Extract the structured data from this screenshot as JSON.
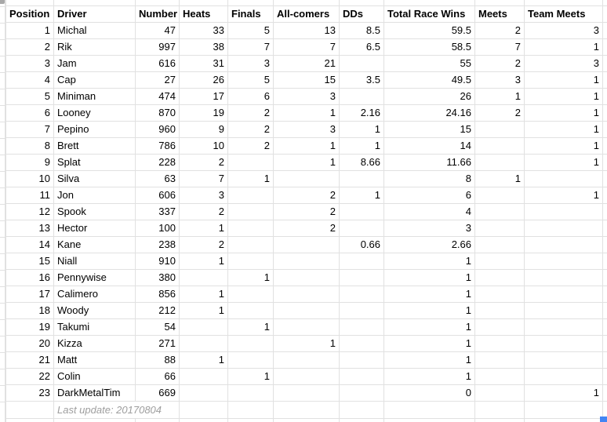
{
  "table": {
    "headers": [
      "Position",
      "Driver",
      "Number",
      "Heats",
      "Finals",
      "All-comers",
      "DDs",
      "Total Race Wins",
      "Meets",
      "Team Meets"
    ],
    "rows": [
      [
        "1",
        "Michal",
        "47",
        "33",
        "5",
        "13",
        "8.5",
        "59.5",
        "2",
        "3"
      ],
      [
        "2",
        "Rik",
        "997",
        "38",
        "7",
        "7",
        "6.5",
        "58.5",
        "7",
        "1"
      ],
      [
        "3",
        "Jam",
        "616",
        "31",
        "3",
        "21",
        "",
        "55",
        "2",
        "3"
      ],
      [
        "4",
        "Cap",
        "27",
        "26",
        "5",
        "15",
        "3.5",
        "49.5",
        "3",
        "1"
      ],
      [
        "5",
        "Miniman",
        "474",
        "17",
        "6",
        "3",
        "",
        "26",
        "1",
        "1"
      ],
      [
        "6",
        "Looney",
        "870",
        "19",
        "2",
        "1",
        "2.16",
        "24.16",
        "2",
        "1"
      ],
      [
        "7",
        "Pepino",
        "960",
        "9",
        "2",
        "3",
        "1",
        "15",
        "",
        "1"
      ],
      [
        "8",
        "Brett",
        "786",
        "10",
        "2",
        "1",
        "1",
        "14",
        "",
        "1"
      ],
      [
        "9",
        "Splat",
        "228",
        "2",
        "",
        "1",
        "8.66",
        "11.66",
        "",
        "1"
      ],
      [
        "10",
        "Silva",
        "63",
        "7",
        "1",
        "",
        "",
        "8",
        "1",
        ""
      ],
      [
        "11",
        "Jon",
        "606",
        "3",
        "",
        "2",
        "1",
        "6",
        "",
        "1"
      ],
      [
        "12",
        "Spook",
        "337",
        "2",
        "",
        "2",
        "",
        "4",
        "",
        ""
      ],
      [
        "13",
        "Hector",
        "100",
        "1",
        "",
        "2",
        "",
        "3",
        "",
        ""
      ],
      [
        "14",
        "Kane",
        "238",
        "2",
        "",
        "",
        "0.66",
        "2.66",
        "",
        ""
      ],
      [
        "15",
        "Niall",
        "910",
        "1",
        "",
        "",
        "",
        "1",
        "",
        ""
      ],
      [
        "16",
        "Pennywise",
        "380",
        "",
        "1",
        "",
        "",
        "1",
        "",
        ""
      ],
      [
        "17",
        "Calimero",
        "856",
        "1",
        "",
        "",
        "",
        "1",
        "",
        ""
      ],
      [
        "18",
        "Woody",
        "212",
        "1",
        "",
        "",
        "",
        "1",
        "",
        ""
      ],
      [
        "19",
        "Takumi",
        "54",
        "",
        "1",
        "",
        "",
        "1",
        "",
        ""
      ],
      [
        "20",
        "Kizza",
        "271",
        "",
        "",
        "1",
        "",
        "1",
        "",
        ""
      ],
      [
        "21",
        "Matt",
        "88",
        "1",
        "",
        "",
        "",
        "1",
        "",
        ""
      ],
      [
        "22",
        "Colin",
        "66",
        "",
        "1",
        "",
        "",
        "1",
        "",
        ""
      ],
      [
        "23",
        "DarkMetalTim",
        "669",
        "",
        "",
        "",
        "",
        "0",
        "",
        "1"
      ]
    ],
    "footer_note": "Last update: 20170804"
  },
  "colors": {
    "gridline": "#e1e1e1",
    "text": "#000000",
    "footer_text": "#9e9e9e",
    "selection_blue": "#4285f4",
    "corner_marker_gray": "#a8a8a8"
  }
}
